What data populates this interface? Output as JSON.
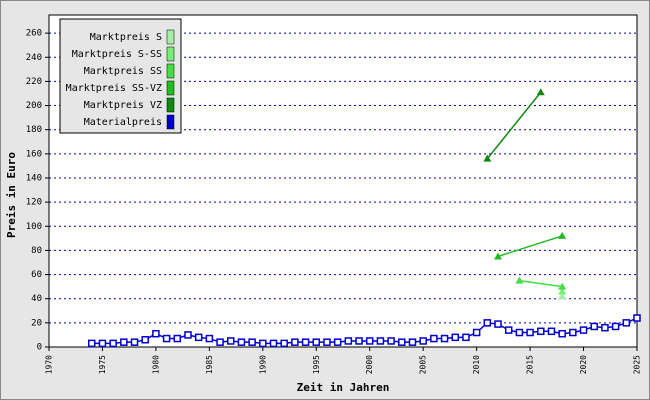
{
  "chart_data": {
    "type": "line",
    "x_label": "Zeit in Jahren",
    "y_label": "Preis in Euro",
    "xlim": [
      1970,
      2025
    ],
    "xticks": [
      1970,
      1975,
      1980,
      1985,
      1990,
      1995,
      2000,
      2005,
      2010,
      2015,
      2020,
      2025
    ],
    "ylim": [
      0,
      275
    ],
    "yticks": [
      0,
      20,
      40,
      60,
      80,
      100,
      120,
      140,
      160,
      180,
      200,
      220,
      240,
      260
    ],
    "grid": true,
    "legend_position": "upper-left",
    "series": [
      {
        "name": "Marktpreis S",
        "color": "#a6eea6",
        "marker": "triangle",
        "x": [
          2018
        ],
        "values": [
          42
        ]
      },
      {
        "name": "Marktpreis S-SS",
        "color": "#77ee77",
        "marker": "triangle",
        "x": [
          2018
        ],
        "values": [
          46
        ]
      },
      {
        "name": "Marktpreis SS",
        "color": "#44dd44",
        "marker": "triangle",
        "x": [
          2014,
          2018
        ],
        "values": [
          55,
          50
        ]
      },
      {
        "name": "Marktpreis SS-VZ",
        "color": "#22bb22",
        "marker": "triangle",
        "x": [
          2012,
          2018
        ],
        "values": [
          75,
          92
        ]
      },
      {
        "name": "Marktpreis VZ",
        "color": "#118811",
        "marker": "triangle",
        "x": [
          2011,
          2016
        ],
        "values": [
          156,
          211
        ]
      },
      {
        "name": "Materialpreis",
        "color": "#0000cc",
        "marker": "square",
        "x": [
          1974,
          1975,
          1976,
          1977,
          1978,
          1979,
          1980,
          1981,
          1982,
          1983,
          1984,
          1985,
          1986,
          1987,
          1988,
          1989,
          1990,
          1991,
          1992,
          1993,
          1994,
          1995,
          1996,
          1997,
          1998,
          1999,
          2000,
          2001,
          2002,
          2003,
          2004,
          2005,
          2006,
          2007,
          2008,
          2009,
          2010,
          2011,
          2012,
          2013,
          2014,
          2015,
          2016,
          2017,
          2018,
          2019,
          2020,
          2021,
          2022,
          2023,
          2024,
          2025
        ],
        "values": [
          3,
          3,
          3,
          4,
          4,
          6,
          11,
          7,
          7,
          10,
          8,
          7,
          4,
          5,
          4,
          4,
          3,
          3,
          3,
          4,
          4,
          4,
          4,
          4,
          5,
          5,
          5,
          5,
          5,
          4,
          4,
          5,
          7,
          7,
          8,
          8,
          12,
          20,
          19,
          14,
          12,
          12,
          13,
          13,
          11,
          12,
          14,
          17,
          16,
          17,
          20,
          24
        ]
      }
    ]
  }
}
